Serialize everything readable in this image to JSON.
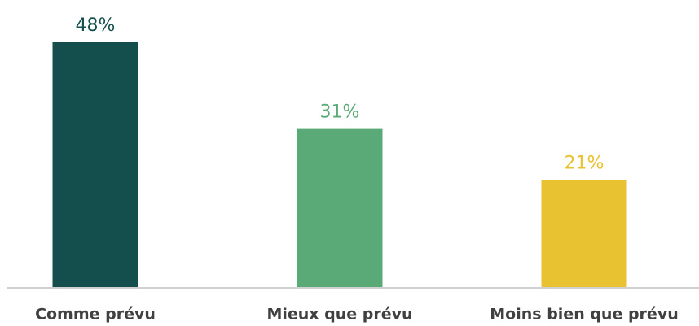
{
  "chart_data": {
    "type": "bar",
    "categories": [
      "Comme prévu",
      "Mieux que prévu",
      "Moins bien que prévu"
    ],
    "values": [
      48,
      31,
      21
    ],
    "value_labels": [
      "48%",
      "31%",
      "21%"
    ],
    "colors": [
      "#154f4d",
      "#5aaa78",
      "#e9c232"
    ]
  }
}
